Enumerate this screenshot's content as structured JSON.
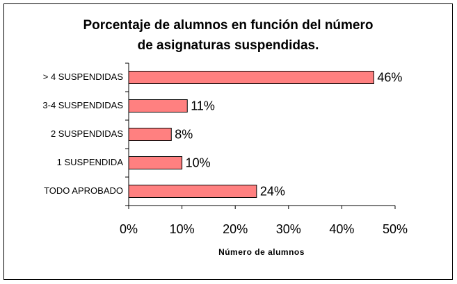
{
  "chart_data": {
    "type": "bar",
    "orientation": "horizontal",
    "title": [
      "Porcentaje de alumnos en función del número",
      "de asignaturas suspendidas."
    ],
    "x_label": "Número de alumnos",
    "categories": [
      "> 4 SUSPENDIDAS",
      "3-4 SUSPENDIDAS",
      "2 SUSPENDIDAS",
      "1 SUSPENDIDA",
      "TODO APROBADO"
    ],
    "values": [
      46,
      11,
      8,
      10,
      24
    ],
    "value_labels": [
      "46%",
      "11%",
      "8%",
      "10%",
      "24%"
    ],
    "color": "#ff8080",
    "xlim": [
      0,
      50
    ],
    "xticks": [
      {
        "value": 0,
        "label": "0%"
      },
      {
        "value": 10,
        "label": "10%"
      },
      {
        "value": 20,
        "label": "20%"
      },
      {
        "value": 30,
        "label": "30%"
      },
      {
        "value": 40,
        "label": "40%"
      },
      {
        "value": 50,
        "label": "50%"
      }
    ],
    "grid": false
  }
}
